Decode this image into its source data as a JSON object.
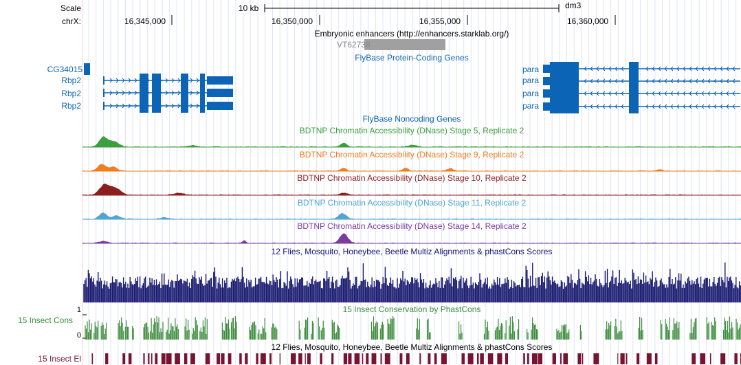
{
  "side_labels": {
    "scale": "Scale",
    "chrom": "chrX:",
    "cg": "CG34015",
    "rbp1": "Rbp2",
    "rbp2": "Rbp2",
    "rbp3": "Rbp2",
    "insect_cons": "15 Insect Cons",
    "insect_el": "15 Insect El",
    "y_max": "1",
    "y_min": "0"
  },
  "ruler": {
    "scale_label": "10 kb",
    "assembly": "dm3",
    "positions": [
      "16,345,000",
      "16,350,000",
      "16,355,000",
      "16,360,000"
    ]
  },
  "tracks": {
    "enhancers_title": "Embryonic enhancers (http://enhancers.starklab.org/)",
    "enhancer_item": "VT62738",
    "flybase_coding": "FlyBase Protein-Coding Genes",
    "flybase_noncoding": "FlyBase Noncoding Genes",
    "dnase5": "BDTNP Chromatin Accessibility (DNase) Stage 5, Replicate 2",
    "dnase9": "BDTNP Chromatin Accessibility (DNase) Stage 9, Replicate 2",
    "dnase10": "BDTNP Chromatin Accessibility (DNase) Stage 10, Replicate 2",
    "dnase11": "BDTNP Chromatin Accessibility (DNase) Stage 11, Replicate 2",
    "dnase14": "BDTNP Chromatin Accessibility (DNase) Stage 14, Replicate 2",
    "multiz": "12 Flies, Mosquito, Honeybee, Beetle Multiz Alignments & phastCons Scores",
    "phastcons": "15 Insect Conservation by PhastCons",
    "multiz2": "12 Flies, Mosquito, Honeybee, Beetle Multiz Alignments & phastCons Scores"
  },
  "genes": {
    "para1": "para",
    "para2": "para",
    "para3": "para",
    "para4": "para"
  },
  "colors": {
    "gene": "#0c64b6",
    "stage5": "#3c9e3c",
    "stage9": "#f07d1e",
    "stage10": "#8c1e1e",
    "stage11": "#4fa6d2",
    "stage14": "#7a3c9c",
    "multiz": "#14146e",
    "phastcons": "#3c8c3c",
    "elements": "#781432",
    "grid": "#dfe3f5",
    "enhancer": "#a0a0a0"
  }
}
